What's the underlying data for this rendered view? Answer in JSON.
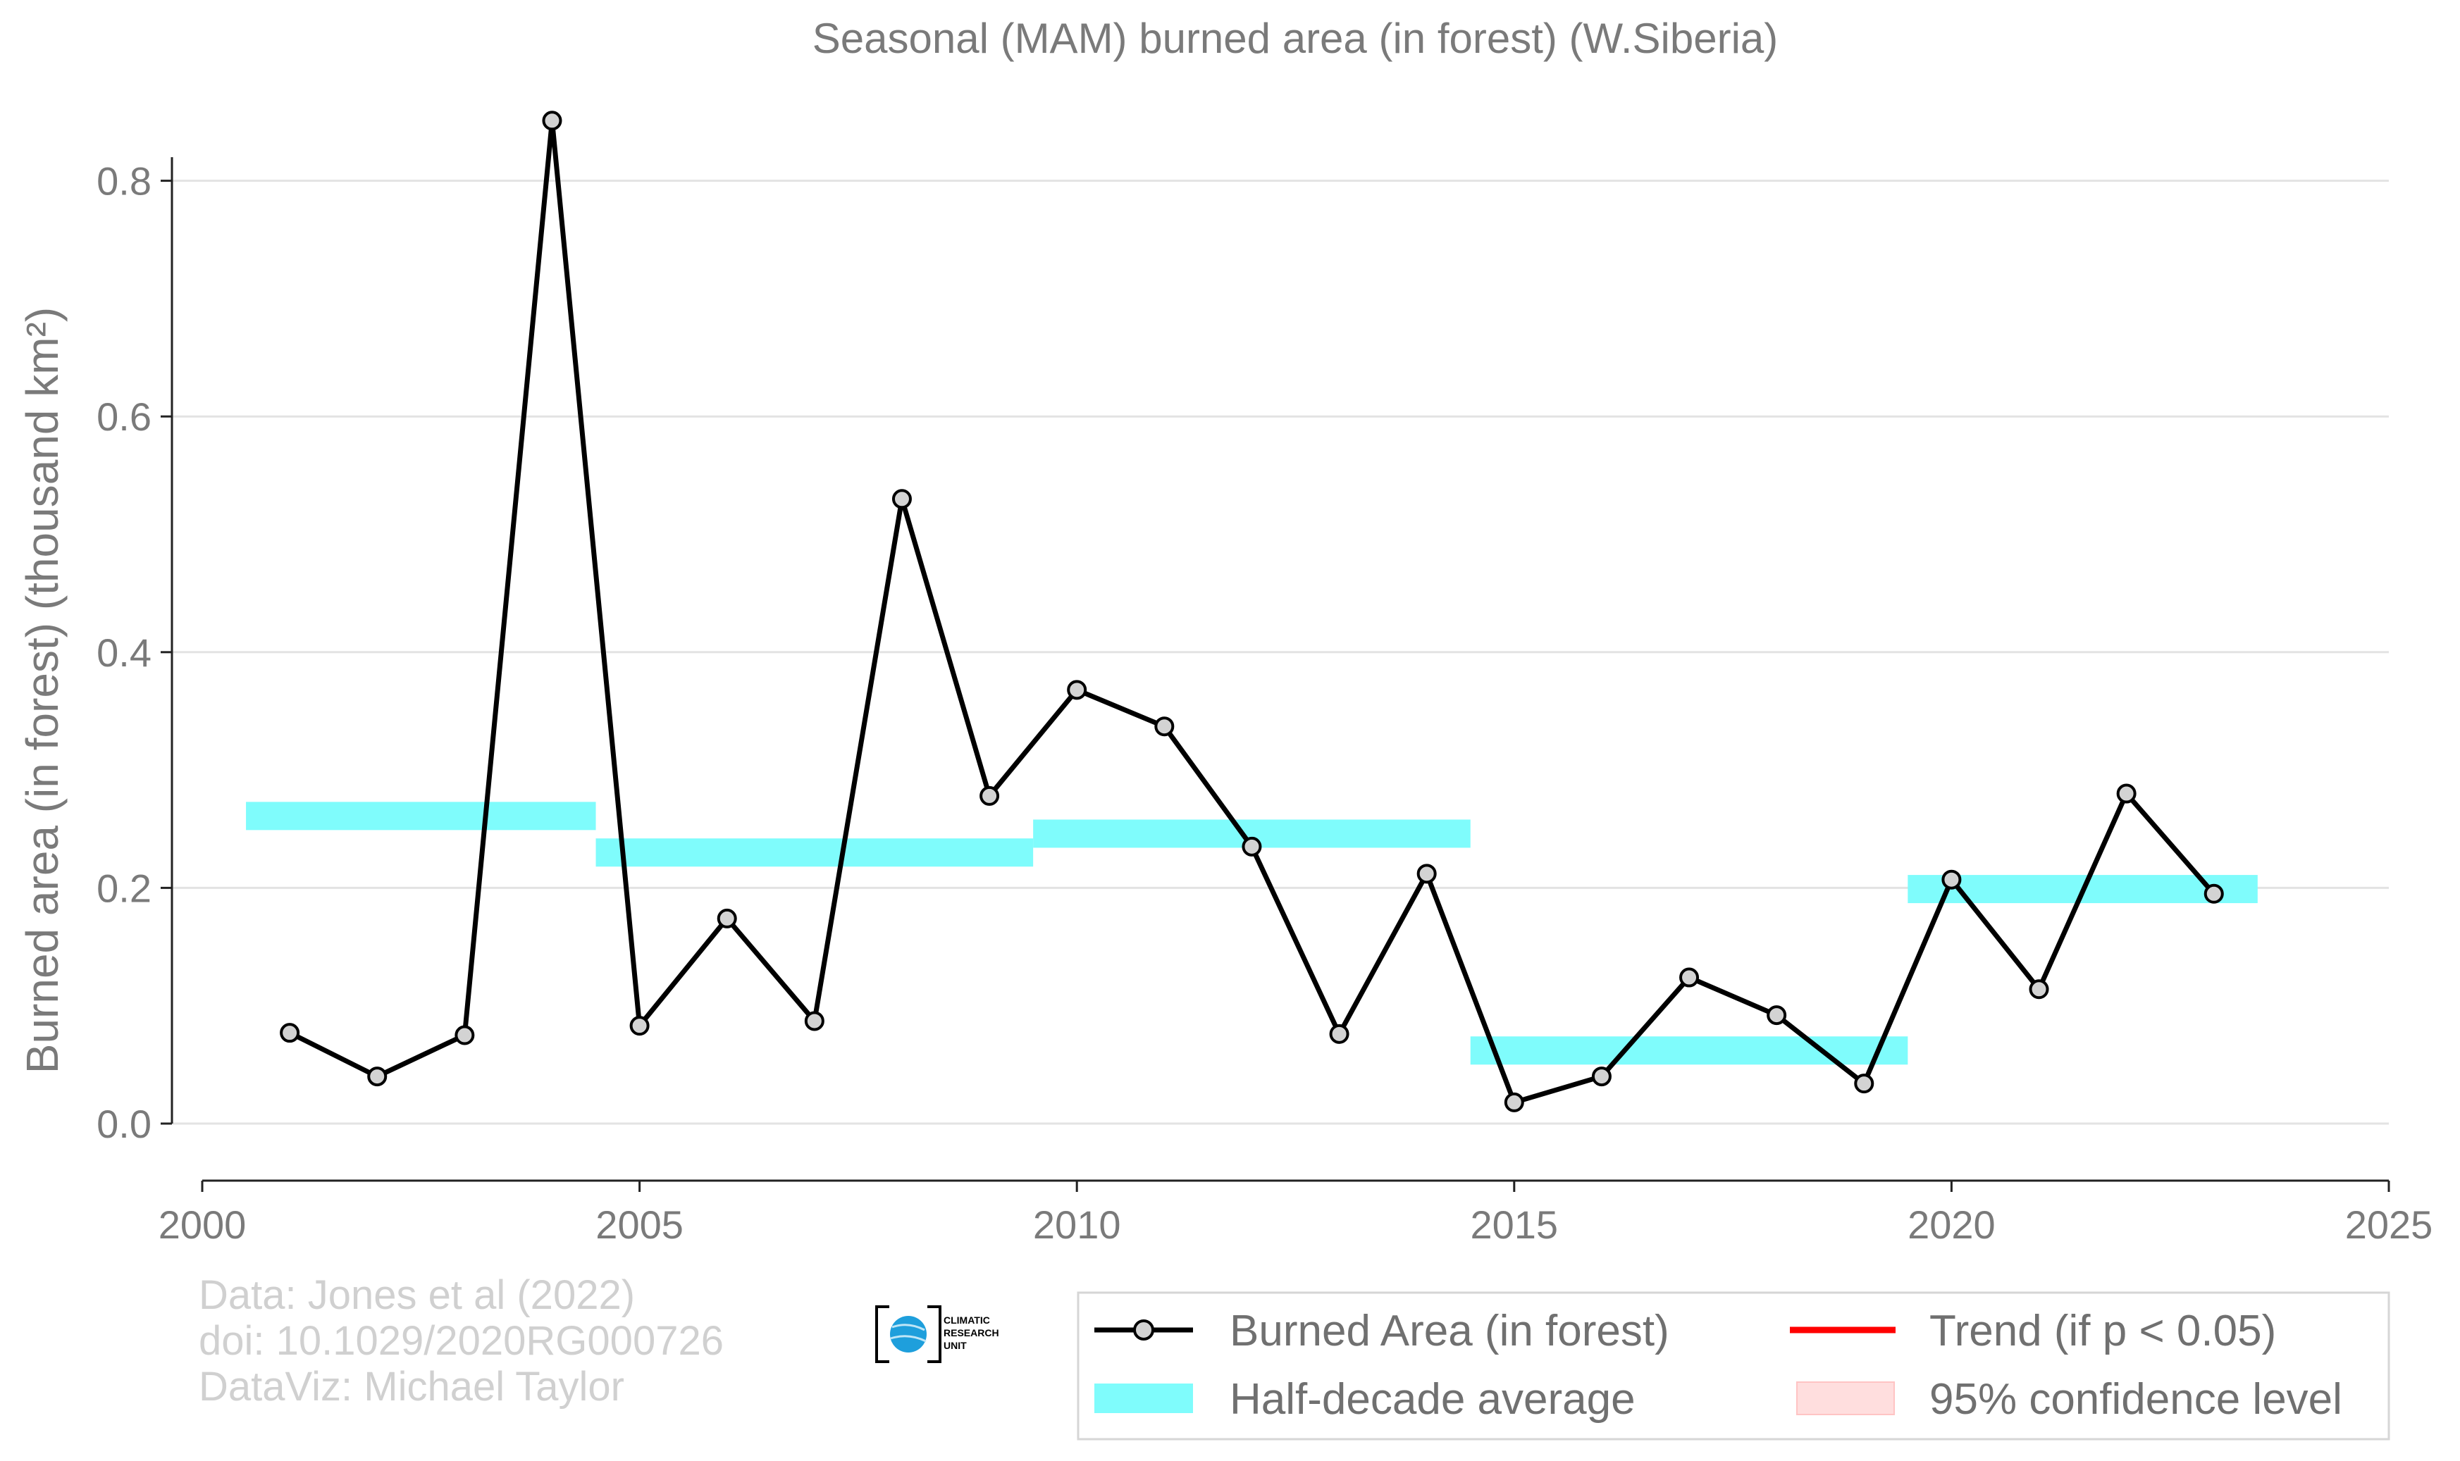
{
  "chart_data": {
    "type": "line",
    "title": "Seasonal (MAM) burned area (in forest) (W.Siberia)",
    "ylabel": "Burned area (in forest) (thousand km²)",
    "xlabel": "",
    "xlim": [
      2000,
      2025
    ],
    "ylim": [
      -0.05,
      0.85
    ],
    "x_ticks": [
      2000,
      2005,
      2010,
      2015,
      2020,
      2025
    ],
    "y_ticks": [
      0.0,
      0.2,
      0.4,
      0.6,
      0.8
    ],
    "y_tick_labels": [
      "0.0",
      "0.2",
      "0.4",
      "0.6",
      "0.8"
    ],
    "grid": "horizontal",
    "series": [
      {
        "name": "Burned Area (in forest)",
        "color": "#000000",
        "x": [
          2001,
          2002,
          2003,
          2004,
          2005,
          2006,
          2007,
          2008,
          2009,
          2010,
          2011,
          2012,
          2013,
          2014,
          2015,
          2016,
          2017,
          2018,
          2019,
          2020,
          2021,
          2022,
          2023
        ],
        "y": [
          0.077,
          0.04,
          0.075,
          0.851,
          0.083,
          0.174,
          0.087,
          0.53,
          0.278,
          0.368,
          0.337,
          0.235,
          0.076,
          0.212,
          0.018,
          0.04,
          0.124,
          0.092,
          0.034,
          0.207,
          0.114,
          0.28,
          0.195
        ]
      }
    ],
    "half_decade_averages": {
      "name": "Half-decade average",
      "color": "#7ffcfc",
      "periods": [
        {
          "start": 2000.5,
          "end": 2004.5,
          "value": 0.261
        },
        {
          "start": 2004.5,
          "end": 2009.5,
          "value": 0.23
        },
        {
          "start": 2009.5,
          "end": 2014.5,
          "value": 0.246
        },
        {
          "start": 2014.5,
          "end": 2019.5,
          "value": 0.062
        },
        {
          "start": 2019.5,
          "end": 2023.5,
          "value": 0.199
        }
      ]
    },
    "legend": {
      "placement": "bottom-right",
      "entries": [
        {
          "label": "Burned Area (in forest)",
          "color": "#000000"
        },
        {
          "label": "Trend (if p < 0.05)",
          "color": "#ff0000"
        },
        {
          "label": "Half-decade average",
          "color": "#7ffcfc"
        },
        {
          "label": "95% confidence level",
          "color": "#ffdede"
        }
      ]
    }
  },
  "credits": {
    "line1": "Data: Jones et al (2022)",
    "line2": "doi: 10.1029/2020RG000726",
    "line3": "DataViz: Michael Taylor"
  },
  "logo": {
    "text1": "CLIMATIC",
    "text2": "RESEARCH",
    "text3": "UNIT"
  }
}
